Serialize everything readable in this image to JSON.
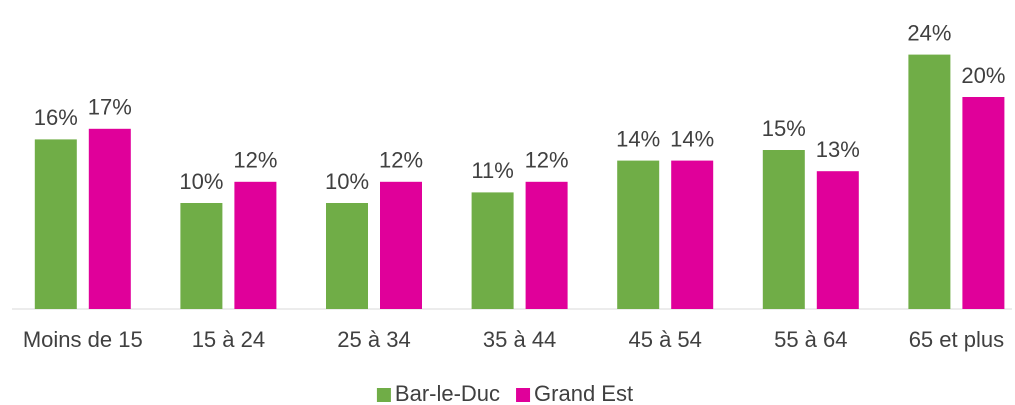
{
  "chart_data": {
    "type": "bar",
    "categories": [
      "Moins de 15",
      "15 à 24",
      "25 à 34",
      "35 à 44",
      "45 à 54",
      "55 à 64",
      "65 et plus"
    ],
    "series": [
      {
        "name": "Bar-le-Duc",
        "color": "#70ad47",
        "values": [
          16,
          10,
          10,
          11,
          14,
          15,
          24
        ],
        "value_labels": [
          "16%",
          "10%",
          "10%",
          "11%",
          "14%",
          "15%",
          "24%"
        ]
      },
      {
        "name": "Grand Est",
        "color": "#e0009a",
        "values": [
          17,
          12,
          12,
          12,
          14,
          13,
          20
        ],
        "value_labels": [
          "17%",
          "12%",
          "12%",
          "12%",
          "14%",
          "13%",
          "20%"
        ]
      }
    ],
    "ylim": [
      0,
      25
    ],
    "legend": "bottom"
  }
}
